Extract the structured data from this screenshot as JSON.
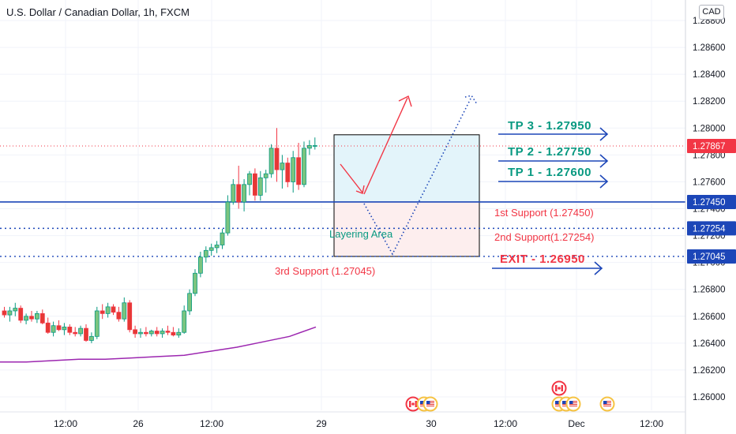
{
  "header": {
    "title": "U.S. Dollar / Canadian Dollar, 1h, FXCM",
    "currency": "CAD"
  },
  "chart_data": {
    "type": "candlestick",
    "symbol": "USDCAD",
    "timeframe": "1h",
    "y_ticks": [
      "1.28800",
      "1.28600",
      "1.28400",
      "1.28200",
      "1.28000",
      "1.27800",
      "1.27600",
      "1.27400",
      "1.27200",
      "1.27000",
      "1.26800",
      "1.26600",
      "1.26400",
      "1.26200",
      "1.26000"
    ],
    "ylim": [
      1.2588,
      1.2895
    ],
    "x_tick_labels": [
      "12:00",
      "26",
      "12:00",
      "29",
      "30",
      "12:00",
      "Dec",
      "12:00"
    ],
    "candles": [
      [
        1.2664,
        1.2667,
        1.2659,
        1.2661
      ],
      [
        1.2661,
        1.2667,
        1.2656,
        1.2664
      ],
      [
        1.2664,
        1.267,
        1.266,
        1.2666
      ],
      [
        1.2666,
        1.2668,
        1.2655,
        1.2657
      ],
      [
        1.2657,
        1.2662,
        1.2654,
        1.266
      ],
      [
        1.266,
        1.2664,
        1.2656,
        1.2658
      ],
      [
        1.2658,
        1.2664,
        1.2655,
        1.2662
      ],
      [
        1.2662,
        1.2665,
        1.2654,
        1.2655
      ],
      [
        1.2655,
        1.2659,
        1.2647,
        1.2648
      ],
      [
        1.2648,
        1.2656,
        1.2645,
        1.2653
      ],
      [
        1.2653,
        1.2657,
        1.2649,
        1.265
      ],
      [
        1.265,
        1.2655,
        1.2646,
        1.2652
      ],
      [
        1.2652,
        1.2654,
        1.2646,
        1.2648
      ],
      [
        1.2648,
        1.2652,
        1.2645,
        1.2647
      ],
      [
        1.2647,
        1.2653,
        1.2645,
        1.2651
      ],
      [
        1.2651,
        1.2654,
        1.2641,
        1.2642
      ],
      [
        1.2642,
        1.2648,
        1.264,
        1.2645
      ],
      [
        1.2645,
        1.2667,
        1.2643,
        1.2664
      ],
      [
        1.2664,
        1.2669,
        1.2658,
        1.2662
      ],
      [
        1.2662,
        1.267,
        1.2659,
        1.2667
      ],
      [
        1.2667,
        1.2669,
        1.2661,
        1.2663
      ],
      [
        1.2663,
        1.2667,
        1.2656,
        1.2658
      ],
      [
        1.2658,
        1.2674,
        1.2656,
        1.267
      ],
      [
        1.267,
        1.2672,
        1.2648,
        1.265
      ],
      [
        1.265,
        1.2653,
        1.2644,
        1.2647
      ],
      [
        1.2647,
        1.2651,
        1.2644,
        1.2648
      ],
      [
        1.2648,
        1.2652,
        1.2645,
        1.2647
      ],
      [
        1.2647,
        1.265,
        1.2645,
        1.2649
      ],
      [
        1.2649,
        1.2652,
        1.2645,
        1.2647
      ],
      [
        1.2647,
        1.2651,
        1.2644,
        1.2649
      ],
      [
        1.2649,
        1.2653,
        1.2646,
        1.2648
      ],
      [
        1.2648,
        1.2652,
        1.2645,
        1.2646
      ],
      [
        1.2646,
        1.2651,
        1.2644,
        1.2648
      ],
      [
        1.2648,
        1.2668,
        1.2647,
        1.2664
      ],
      [
        1.2664,
        1.268,
        1.2661,
        1.2677
      ],
      [
        1.2677,
        1.2695,
        1.2675,
        1.2692
      ],
      [
        1.2692,
        1.2708,
        1.2689,
        1.2704
      ],
      [
        1.2704,
        1.2712,
        1.27,
        1.2709
      ],
      [
        1.2709,
        1.2714,
        1.2705,
        1.2711
      ],
      [
        1.2711,
        1.2716,
        1.2707,
        1.2713
      ],
      [
        1.2713,
        1.2725,
        1.271,
        1.2722
      ],
      [
        1.2722,
        1.275,
        1.272,
        1.2745
      ],
      [
        1.2745,
        1.2762,
        1.2743,
        1.2758
      ],
      [
        1.2758,
        1.2772,
        1.274,
        1.2745
      ],
      [
        1.2745,
        1.2762,
        1.2738,
        1.2758
      ],
      [
        1.2758,
        1.2768,
        1.275,
        1.2766
      ],
      [
        1.2766,
        1.277,
        1.2746,
        1.275
      ],
      [
        1.275,
        1.2768,
        1.2746,
        1.2763
      ],
      [
        1.2763,
        1.2769,
        1.2752,
        1.2766
      ],
      [
        1.2766,
        1.2788,
        1.2763,
        1.2785
      ],
      [
        1.2785,
        1.28,
        1.276,
        1.2769
      ],
      [
        1.2769,
        1.278,
        1.2755,
        1.2774
      ],
      [
        1.2774,
        1.2778,
        1.2756,
        1.276
      ],
      [
        1.276,
        1.2783,
        1.2752,
        1.2778
      ],
      [
        1.2778,
        1.2789,
        1.2754,
        1.2758
      ],
      [
        1.2758,
        1.279,
        1.2756,
        1.2785
      ],
      [
        1.2785,
        1.2791,
        1.278,
        1.2787
      ],
      [
        1.2787,
        1.2793,
        1.2784,
        1.2787
      ]
    ],
    "moving_average": [
      1.2626,
      1.2626,
      1.2627,
      1.2628,
      1.2628,
      1.2629,
      1.263,
      1.2631,
      1.2634,
      1.2637,
      1.2641,
      1.2645,
      1.2652
    ],
    "current_price": "1.27867",
    "levels": [
      {
        "name": "1st Support",
        "price": "1.27450",
        "label": "1st Support (1.27450)",
        "style": "solid"
      },
      {
        "name": "2nd Support",
        "price": "1.27254",
        "label": "2nd Support(1.27254)",
        "style": "dotted"
      },
      {
        "name": "3rd Support",
        "price": "1.27045",
        "label": "3rd Support (1.27045)",
        "style": "dotted"
      }
    ],
    "targets": [
      {
        "label": "TP 3 - 1.27950",
        "price": 1.2795
      },
      {
        "label": "TP 2 - 1.27750",
        "price": 1.2775
      },
      {
        "label": "TP 1 - 1.27600",
        "price": 1.276
      }
    ],
    "exit": {
      "label": "EXIT - 1.26950",
      "price": 1.2695
    },
    "zone_label": "Layering Area",
    "zone": {
      "top": 1.2795,
      "middle": 1.2745,
      "bottom": 1.27045
    },
    "events": [
      "CAD",
      "USD"
    ],
    "colors": {
      "up": "#089981",
      "up_fill": "#7bc47f",
      "down": "#f23645",
      "down_fill": "#e53935",
      "support_line": "#1c46b8",
      "arrow_blue": "#1c46b8",
      "ma": "#9c27b0",
      "price_tag": "#f23645",
      "level_tag": "#1c46b8",
      "zone_blue": "#e3f4fa",
      "zone_red": "#fdeeee"
    }
  }
}
